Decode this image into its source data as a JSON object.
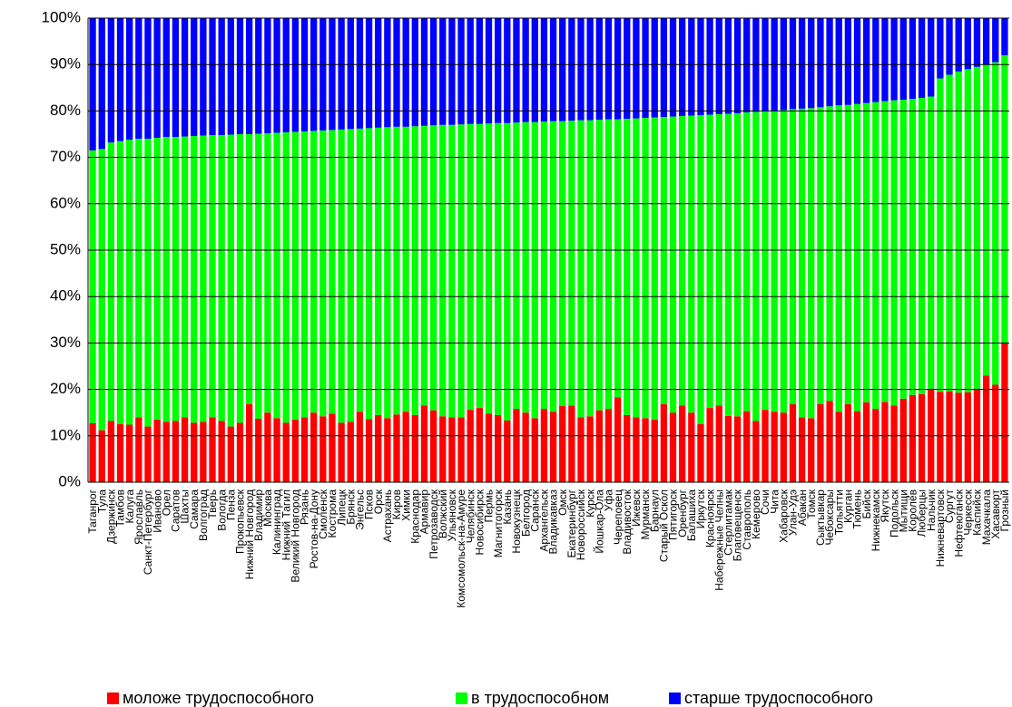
{
  "chart_data": {
    "type": "stacked_bar_100",
    "categories": [
      "Таганрог",
      "Тула",
      "Дзержинск",
      "Тамбов",
      "Калуга",
      "Ярославль",
      "Санкт-Петербург",
      "Иваново",
      "Орел",
      "Саратов",
      "Шахты",
      "Самара",
      "Волгоград",
      "Тверь",
      "Вологда",
      "Пенза",
      "Прокопьевск",
      "Нижний Новгород",
      "Владимир",
      "Москва",
      "Калининград",
      "Нижний Тагил",
      "Великий Новгород",
      "Рязань",
      "Ростов-на-Дону",
      "Смоленск",
      "Кострома",
      "Липецк",
      "Брянск",
      "Энгельс",
      "Псков",
      "Орск",
      "Астрахань",
      "Киров",
      "Химки",
      "Краснодар",
      "Армавир",
      "Петрозаводск",
      "Волжский",
      "Ульяновск",
      "Комсомольск-на-Амуре",
      "Челябинск",
      "Новосибирск",
      "Пермь",
      "Магнитогорск",
      "Казань",
      "Новокузнецк",
      "Белгород",
      "Саранск",
      "Архангельск",
      "Владикавказ",
      "Омск",
      "Екатеринбург",
      "Новороссийск",
      "Курск",
      "Йошкар-Ола",
      "Уфа",
      "Череповец",
      "Владивосток",
      "Ижевск",
      "Мурманск",
      "Барнаул",
      "Старый Оскол",
      "Пятигорск",
      "Оренбург",
      "Балашиха",
      "Иркутск",
      "Красноярск",
      "Набережные Челны",
      "Стерлитамак",
      "Благовещенск",
      "Ставрополь",
      "Кемерово",
      "Сочи",
      "Чита",
      "Хабаровск",
      "Улан-Удэ",
      "Абакан",
      "Томск",
      "Сыктывкар",
      "Чебоксары",
      "Тольятти",
      "Курган",
      "Тюмень",
      "Бийск",
      "Нижнекамск",
      "Якутск",
      "Подольск",
      "Мытищи",
      "Королёв",
      "Люберцы",
      "Нальчик",
      "Нижневартовск",
      "Сургут",
      "Нефтеюганск",
      "Черкесск",
      "Каспийск",
      "Махачкала",
      "Хасавюрт",
      "Грозный"
    ],
    "series": [
      {
        "name": "моложе трудоспособного",
        "color": "#ff0000",
        "values": [
          12.7,
          11.2,
          13.2,
          12.5,
          12.4,
          14.0,
          12.0,
          13.5,
          13.0,
          13.2,
          14.0,
          12.8,
          13.0,
          14.0,
          13.2,
          12.0,
          12.8,
          16.8,
          13.7,
          15.0,
          13.8,
          12.8,
          13.5,
          14.0,
          15.0,
          14.2,
          14.8,
          12.8,
          13.0,
          15.2,
          13.6,
          14.5,
          13.8,
          14.6,
          15.2,
          14.5,
          16.5,
          15.5,
          14.2,
          14.0,
          14.0,
          15.6,
          16.0,
          14.8,
          14.5,
          13.3,
          15.8,
          15.0,
          13.8,
          15.8,
          15.2,
          16.4,
          16.5,
          14.0,
          14.2,
          15.5,
          15.8,
          18.3,
          14.5,
          14.0,
          13.8,
          13.5,
          16.8,
          15.0,
          16.5,
          15.0,
          12.5,
          16.0,
          16.5,
          14.3,
          14.2,
          15.3,
          13.2,
          15.6,
          15.2,
          15.0,
          16.8,
          14.0,
          13.8,
          16.8,
          17.5,
          15.2,
          16.8,
          15.3,
          17.2,
          15.8,
          17.3,
          16.5,
          18.0,
          18.8,
          19.0,
          20.0,
          19.5,
          19.6,
          19.3,
          19.4,
          20.0,
          23.0,
          21.0,
          30.0
        ]
      },
      {
        "name": "в трудоспособном",
        "color": "#00ff00",
        "values": [
          58.8,
          60.6,
          60.0,
          61.0,
          61.4,
          60.0,
          62.0,
          60.7,
          61.4,
          61.2,
          60.5,
          61.8,
          61.7,
          60.8,
          61.6,
          62.9,
          62.2,
          58.2,
          61.4,
          60.2,
          61.5,
          62.6,
          62.0,
          61.6,
          60.7,
          61.6,
          61.1,
          63.2,
          63.1,
          61.0,
          62.7,
          61.9,
          62.7,
          62.0,
          61.4,
          62.2,
          60.3,
          61.4,
          62.8,
          63.0,
          63.1,
          61.6,
          61.2,
          62.5,
          62.9,
          64.1,
          61.7,
          62.6,
          63.8,
          61.9,
          62.6,
          61.4,
          61.4,
          64.0,
          63.8,
          62.6,
          62.4,
          59.9,
          63.8,
          64.4,
          64.7,
          65.1,
          61.9,
          63.8,
          62.4,
          64.0,
          66.6,
          63.2,
          62.8,
          65.1,
          65.3,
          64.4,
          66.6,
          64.3,
          64.8,
          65.2,
          63.6,
          66.5,
          66.8,
          64.0,
          63.5,
          66.0,
          64.5,
          66.2,
          64.5,
          66.1,
          64.8,
          65.8,
          64.4,
          63.8,
          63.8,
          63.1,
          67.5,
          68.2,
          69.2,
          69.6,
          69.5,
          67.0,
          69.5,
          62.0
        ]
      },
      {
        "name": "старше трудоспособного",
        "color": "#0000ff",
        "values": [
          28.5,
          28.2,
          26.8,
          26.5,
          26.2,
          26.0,
          26.0,
          25.8,
          25.6,
          25.6,
          25.5,
          25.4,
          25.3,
          25.2,
          25.2,
          25.1,
          25.0,
          25.0,
          24.9,
          24.8,
          24.7,
          24.6,
          24.5,
          24.4,
          24.3,
          24.2,
          24.1,
          24.0,
          23.9,
          23.8,
          23.7,
          23.6,
          23.5,
          23.4,
          23.4,
          23.3,
          23.2,
          23.1,
          23.0,
          23.0,
          22.9,
          22.8,
          22.8,
          22.7,
          22.6,
          22.6,
          22.5,
          22.4,
          22.4,
          22.3,
          22.2,
          22.2,
          22.1,
          22.0,
          22.0,
          21.9,
          21.8,
          21.8,
          21.7,
          21.6,
          21.5,
          21.4,
          21.3,
          21.2,
          21.1,
          21.0,
          20.9,
          20.8,
          20.7,
          20.6,
          20.5,
          20.3,
          20.2,
          20.1,
          20.0,
          19.8,
          19.6,
          19.5,
          19.4,
          19.2,
          19.0,
          18.8,
          18.7,
          18.5,
          18.3,
          18.1,
          17.9,
          17.7,
          17.6,
          17.4,
          17.2,
          16.9,
          13.0,
          12.2,
          11.5,
          11.0,
          10.5,
          10.0,
          9.5,
          8.0
        ]
      }
    ],
    "ylim": [
      0,
      100
    ],
    "yticks": [
      {
        "value": 0,
        "label": "0%"
      },
      {
        "value": 10,
        "label": "10%"
      },
      {
        "value": 20,
        "label": "20%"
      },
      {
        "value": 30,
        "label": "30%"
      },
      {
        "value": 40,
        "label": "40%"
      },
      {
        "value": 50,
        "label": "50%"
      },
      {
        "value": 60,
        "label": "60%"
      },
      {
        "value": 70,
        "label": "70%"
      },
      {
        "value": 80,
        "label": "80%"
      },
      {
        "value": 90,
        "label": "90%"
      },
      {
        "value": 100,
        "label": "100%"
      }
    ],
    "grid": true,
    "legend": "bottom"
  }
}
